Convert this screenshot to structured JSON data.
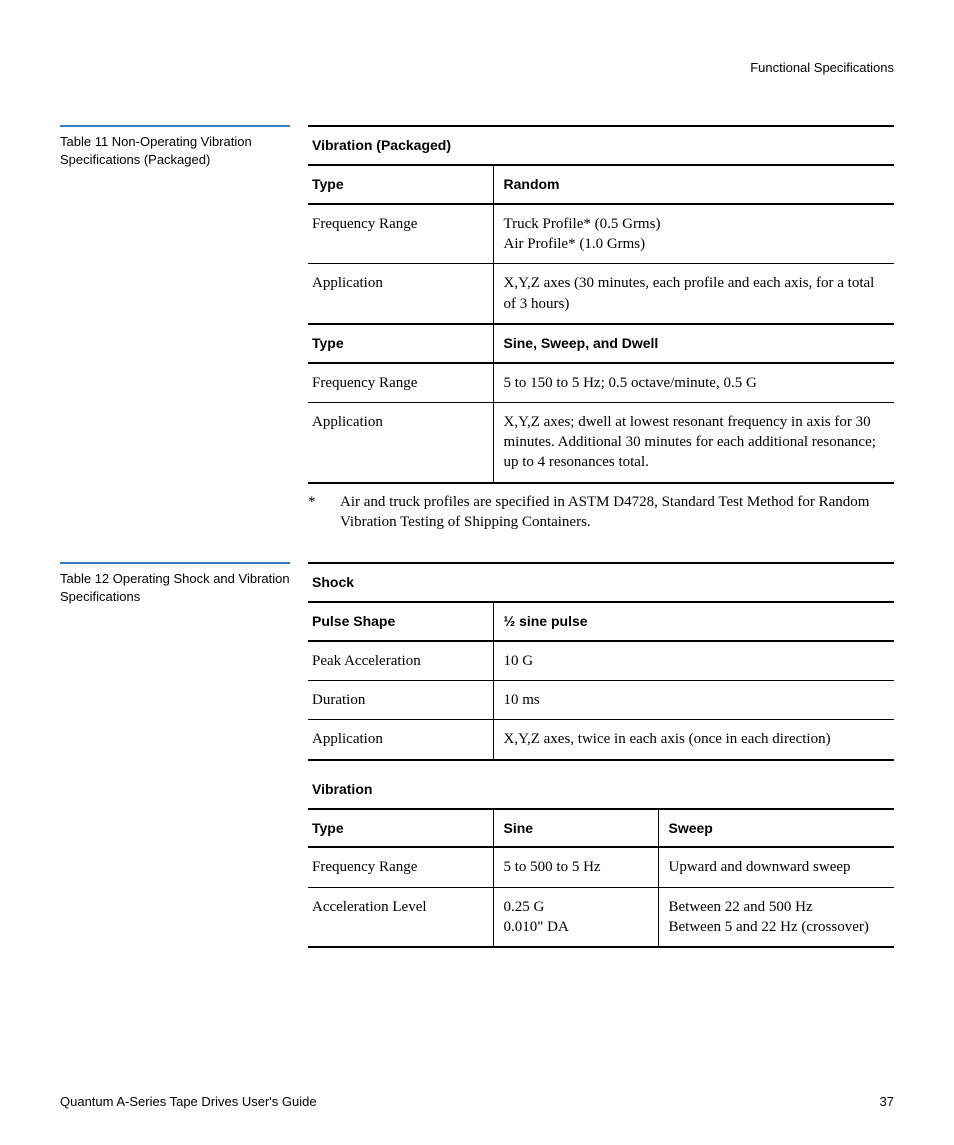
{
  "header": {
    "section_title": "Functional Specifications"
  },
  "table11": {
    "caption": "Table 11   Non-Operating Vibration Specifications (Packaged)",
    "title": "Vibration (Packaged)",
    "group1": {
      "type_label": "Type",
      "type_value": "Random",
      "rows": [
        {
          "label": "Frequency Range",
          "value": "Truck Profile* (0.5 Grms)\nAir Profile* (1.0 Grms)"
        },
        {
          "label": "Application",
          "value": "X,Y,Z axes (30 minutes, each profile and each axis, for a total of 3 hours)"
        }
      ]
    },
    "group2": {
      "type_label": "Type",
      "type_value": "Sine, Sweep, and Dwell",
      "rows": [
        {
          "label": "Frequency Range",
          "value": "5 to 150 to 5 Hz; 0.5 octave/minute, 0.5 G"
        },
        {
          "label": "Application",
          "value": "X,Y,Z axes; dwell at lowest resonant frequency in axis for 30 minutes. Additional 30 minutes for each additional resonance; up to 4 resonances total."
        }
      ]
    },
    "footnote_mark": "*",
    "footnote": "Air and truck profiles are specified in ASTM D4728, Standard Test Method for Random Vibration Testing of Shipping Containers."
  },
  "table12": {
    "caption": "Table 12   Operating Shock and Vibration Specifications",
    "shock": {
      "title": "Shock",
      "header_label": "Pulse Shape",
      "header_value": "½ sine pulse",
      "rows": [
        {
          "label": "Peak Acceleration",
          "value": "10 G"
        },
        {
          "label": "Duration",
          "value": "10 ms"
        },
        {
          "label": "Application",
          "value": "X,Y,Z axes, twice in each axis (once in each direction)"
        }
      ]
    },
    "vibration": {
      "title": "Vibration",
      "header": {
        "c0": "Type",
        "c1": "Sine",
        "c2": "Sweep"
      },
      "rows": [
        {
          "c0": "Frequency Range",
          "c1": "5 to 500 to 5 Hz",
          "c2": "Upward and downward sweep"
        },
        {
          "c0": "Acceleration Level",
          "c1": "0.25 G\n0.010\" DA",
          "c2": "Between 22 and 500 Hz\nBetween 5 and 22 Hz (crossover)"
        }
      ]
    }
  },
  "footer": {
    "doc_title": "Quantum A-Series Tape Drives User's Guide",
    "page_number": "37"
  },
  "styles": {
    "accent_color": "#3a7abd",
    "rule_color": "#000000",
    "body_bg": "#ffffff"
  }
}
